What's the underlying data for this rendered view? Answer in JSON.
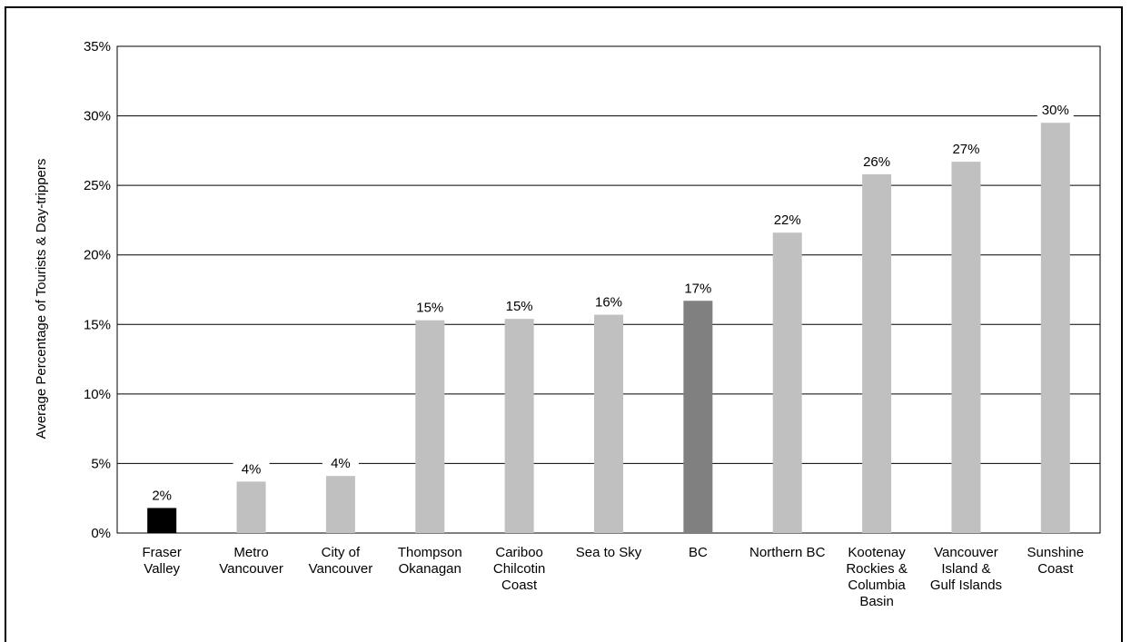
{
  "chart_data": {
    "type": "bar",
    "ylabel": "Average Percentage of Tourists & Day-trippers",
    "ylim": [
      0,
      35
    ],
    "yticks": [
      "0%",
      "5%",
      "10%",
      "15%",
      "20%",
      "25%",
      "30%",
      "35%"
    ],
    "ytick_values": [
      0,
      5,
      10,
      15,
      20,
      25,
      30,
      35
    ],
    "grid": true,
    "categories": [
      [
        "Fraser",
        "Valley"
      ],
      [
        "Metro",
        "Vancouver"
      ],
      [
        "City of",
        "Vancouver"
      ],
      [
        "Thompson",
        "Okanagan"
      ],
      [
        "Cariboo",
        "Chilcotin",
        "Coast"
      ],
      [
        "Sea to Sky"
      ],
      [
        "BC"
      ],
      [
        "Northern BC"
      ],
      [
        "Kootenay",
        "Rockies &",
        "Columbia",
        "Basin"
      ],
      [
        "Vancouver",
        "Island &",
        "Gulf Islands"
      ],
      [
        "Sunshine",
        "Coast"
      ]
    ],
    "values": [
      1.8,
      3.7,
      4.1,
      15.3,
      15.4,
      15.7,
      16.7,
      21.6,
      25.8,
      26.7,
      29.5
    ],
    "data_labels": [
      "2%",
      "4%",
      "4%",
      "15%",
      "15%",
      "16%",
      "17%",
      "22%",
      "26%",
      "27%",
      "30%"
    ],
    "colors": [
      "#000000",
      "#c0c0c0",
      "#c0c0c0",
      "#c0c0c0",
      "#c0c0c0",
      "#c0c0c0",
      "#808080",
      "#c0c0c0",
      "#c0c0c0",
      "#c0c0c0",
      "#c0c0c0"
    ]
  }
}
